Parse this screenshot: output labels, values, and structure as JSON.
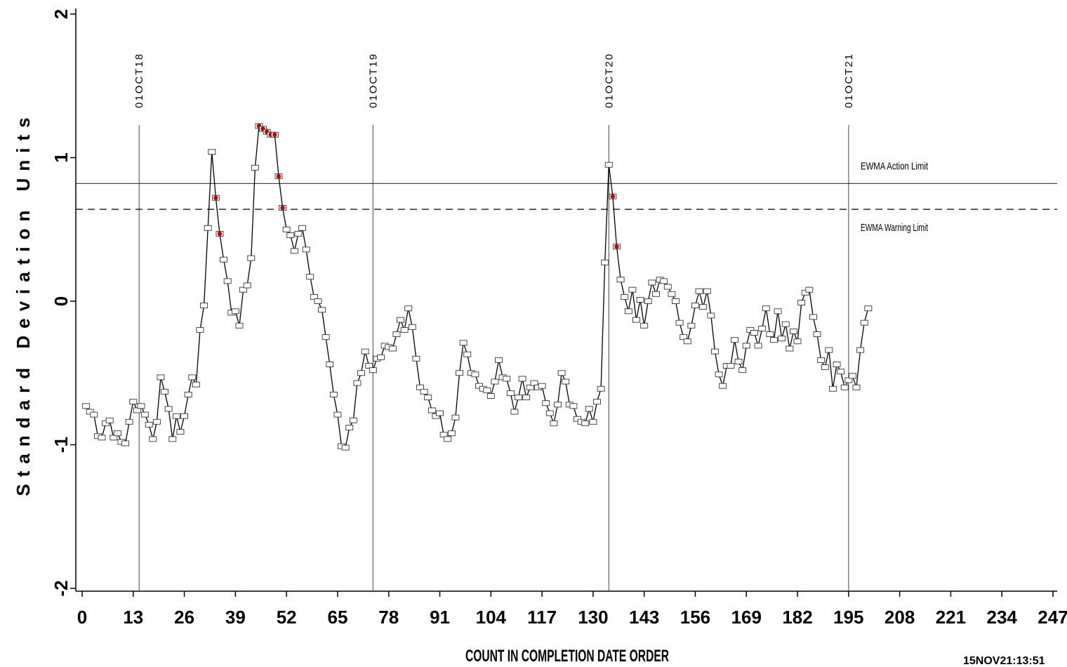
{
  "chart_data": {
    "type": "line",
    "ylabel": "Standard Deviation Units",
    "xlabel": "COUNT IN COMPLETION DATE ORDER",
    "xlim": [
      0,
      247
    ],
    "ylim": [
      -2,
      2
    ],
    "x_ticks": [
      "0",
      "13",
      "26",
      "39",
      "52",
      "65",
      "78",
      "91",
      "104",
      "117",
      "130",
      "143",
      "156",
      "169",
      "182",
      "195",
      "208",
      "221",
      "234",
      "247"
    ],
    "y_ticks": [
      "2",
      "1",
      "0",
      "-1",
      "-2"
    ],
    "limits": [
      {
        "name": "EWMA Action Limit",
        "value": 0.82,
        "style": "solid"
      },
      {
        "name": "EWMA Warning Limit",
        "value": 0.64,
        "style": "dashed"
      }
    ],
    "reference_lines": [
      {
        "x": 14.5,
        "label": "01OCT18"
      },
      {
        "x": 74,
        "label": "01OCT19"
      },
      {
        "x": 134,
        "label": "01OCT20"
      },
      {
        "x": 195,
        "label": "01OCT21"
      }
    ],
    "timestamp": "15NOV21:13:51",
    "series": [
      {
        "values": [
          -0.73,
          -0.77,
          -0.79,
          -0.94,
          -0.95,
          -0.85,
          -0.83,
          -0.95,
          -0.92,
          -0.98,
          -0.99,
          -0.84,
          -0.7,
          -0.76,
          -0.73,
          -0.79,
          -0.86,
          -0.96,
          -0.84,
          -0.53,
          -0.63,
          -0.75,
          -0.96,
          -0.8,
          -0.91,
          -0.8,
          -0.65,
          -0.53,
          -0.58,
          -0.2,
          -0.03,
          0.51,
          1.04,
          0.72,
          0.47,
          0.29,
          0.14,
          -0.08,
          -0.07,
          -0.17,
          0.08,
          0.11,
          0.3,
          0.93,
          1.22,
          1.2,
          1.18,
          1.16,
          1.16,
          0.87,
          0.65,
          0.5,
          0.46,
          0.35,
          0.47,
          0.51,
          0.36,
          0.17,
          0.03,
          0.0,
          -0.06,
          -0.25,
          -0.44,
          -0.65,
          -0.79,
          -1.01,
          -1.02,
          -0.88,
          -0.83,
          -0.57,
          -0.5,
          -0.35,
          -0.45,
          -0.48,
          -0.4,
          -0.39,
          -0.31,
          -0.32,
          -0.33,
          -0.23,
          -0.13,
          -0.2,
          -0.05,
          -0.18,
          -0.4,
          -0.6,
          -0.63,
          -0.67,
          -0.76,
          -0.8,
          -0.78,
          -0.93,
          -0.96,
          -0.92,
          -0.81,
          -0.5,
          -0.29,
          -0.37,
          -0.5,
          -0.51,
          -0.59,
          -0.61,
          -0.62,
          -0.66,
          -0.56,
          -0.41,
          -0.53,
          -0.54,
          -0.64,
          -0.77,
          -0.67,
          -0.54,
          -0.67,
          -0.6,
          -0.57,
          -0.6,
          -0.59,
          -0.71,
          -0.78,
          -0.85,
          -0.72,
          -0.5,
          -0.56,
          -0.72,
          -0.73,
          -0.82,
          -0.84,
          -0.85,
          -0.75,
          -0.84,
          -0.7,
          -0.61,
          0.27,
          0.95,
          0.73,
          0.38,
          0.15,
          0.03,
          -0.07,
          0.08,
          -0.13,
          0.01,
          -0.17,
          0.0,
          0.13,
          0.05,
          0.15,
          0.14,
          0.1,
          0.05,
          0.0,
          -0.15,
          -0.25,
          -0.28,
          -0.17,
          -0.03,
          0.07,
          -0.04,
          0.07,
          -0.1,
          -0.35,
          -0.51,
          -0.59,
          -0.45,
          -0.45,
          -0.27,
          -0.42,
          -0.48,
          -0.31,
          -0.2,
          -0.22,
          -0.31,
          -0.19,
          -0.05,
          -0.23,
          -0.27,
          -0.07,
          -0.26,
          -0.16,
          -0.33,
          -0.21,
          -0.28,
          -0.01,
          0.06,
          0.08,
          -0.11,
          -0.23,
          -0.41,
          -0.46,
          -0.34,
          -0.61,
          -0.44,
          -0.49,
          -0.6,
          -0.55,
          -0.52,
          -0.6,
          -0.34,
          -0.15,
          -0.05
        ]
      }
    ],
    "flagged_points": [
      33,
      34,
      44,
      45,
      46,
      47,
      48,
      49,
      50,
      134,
      135
    ]
  }
}
